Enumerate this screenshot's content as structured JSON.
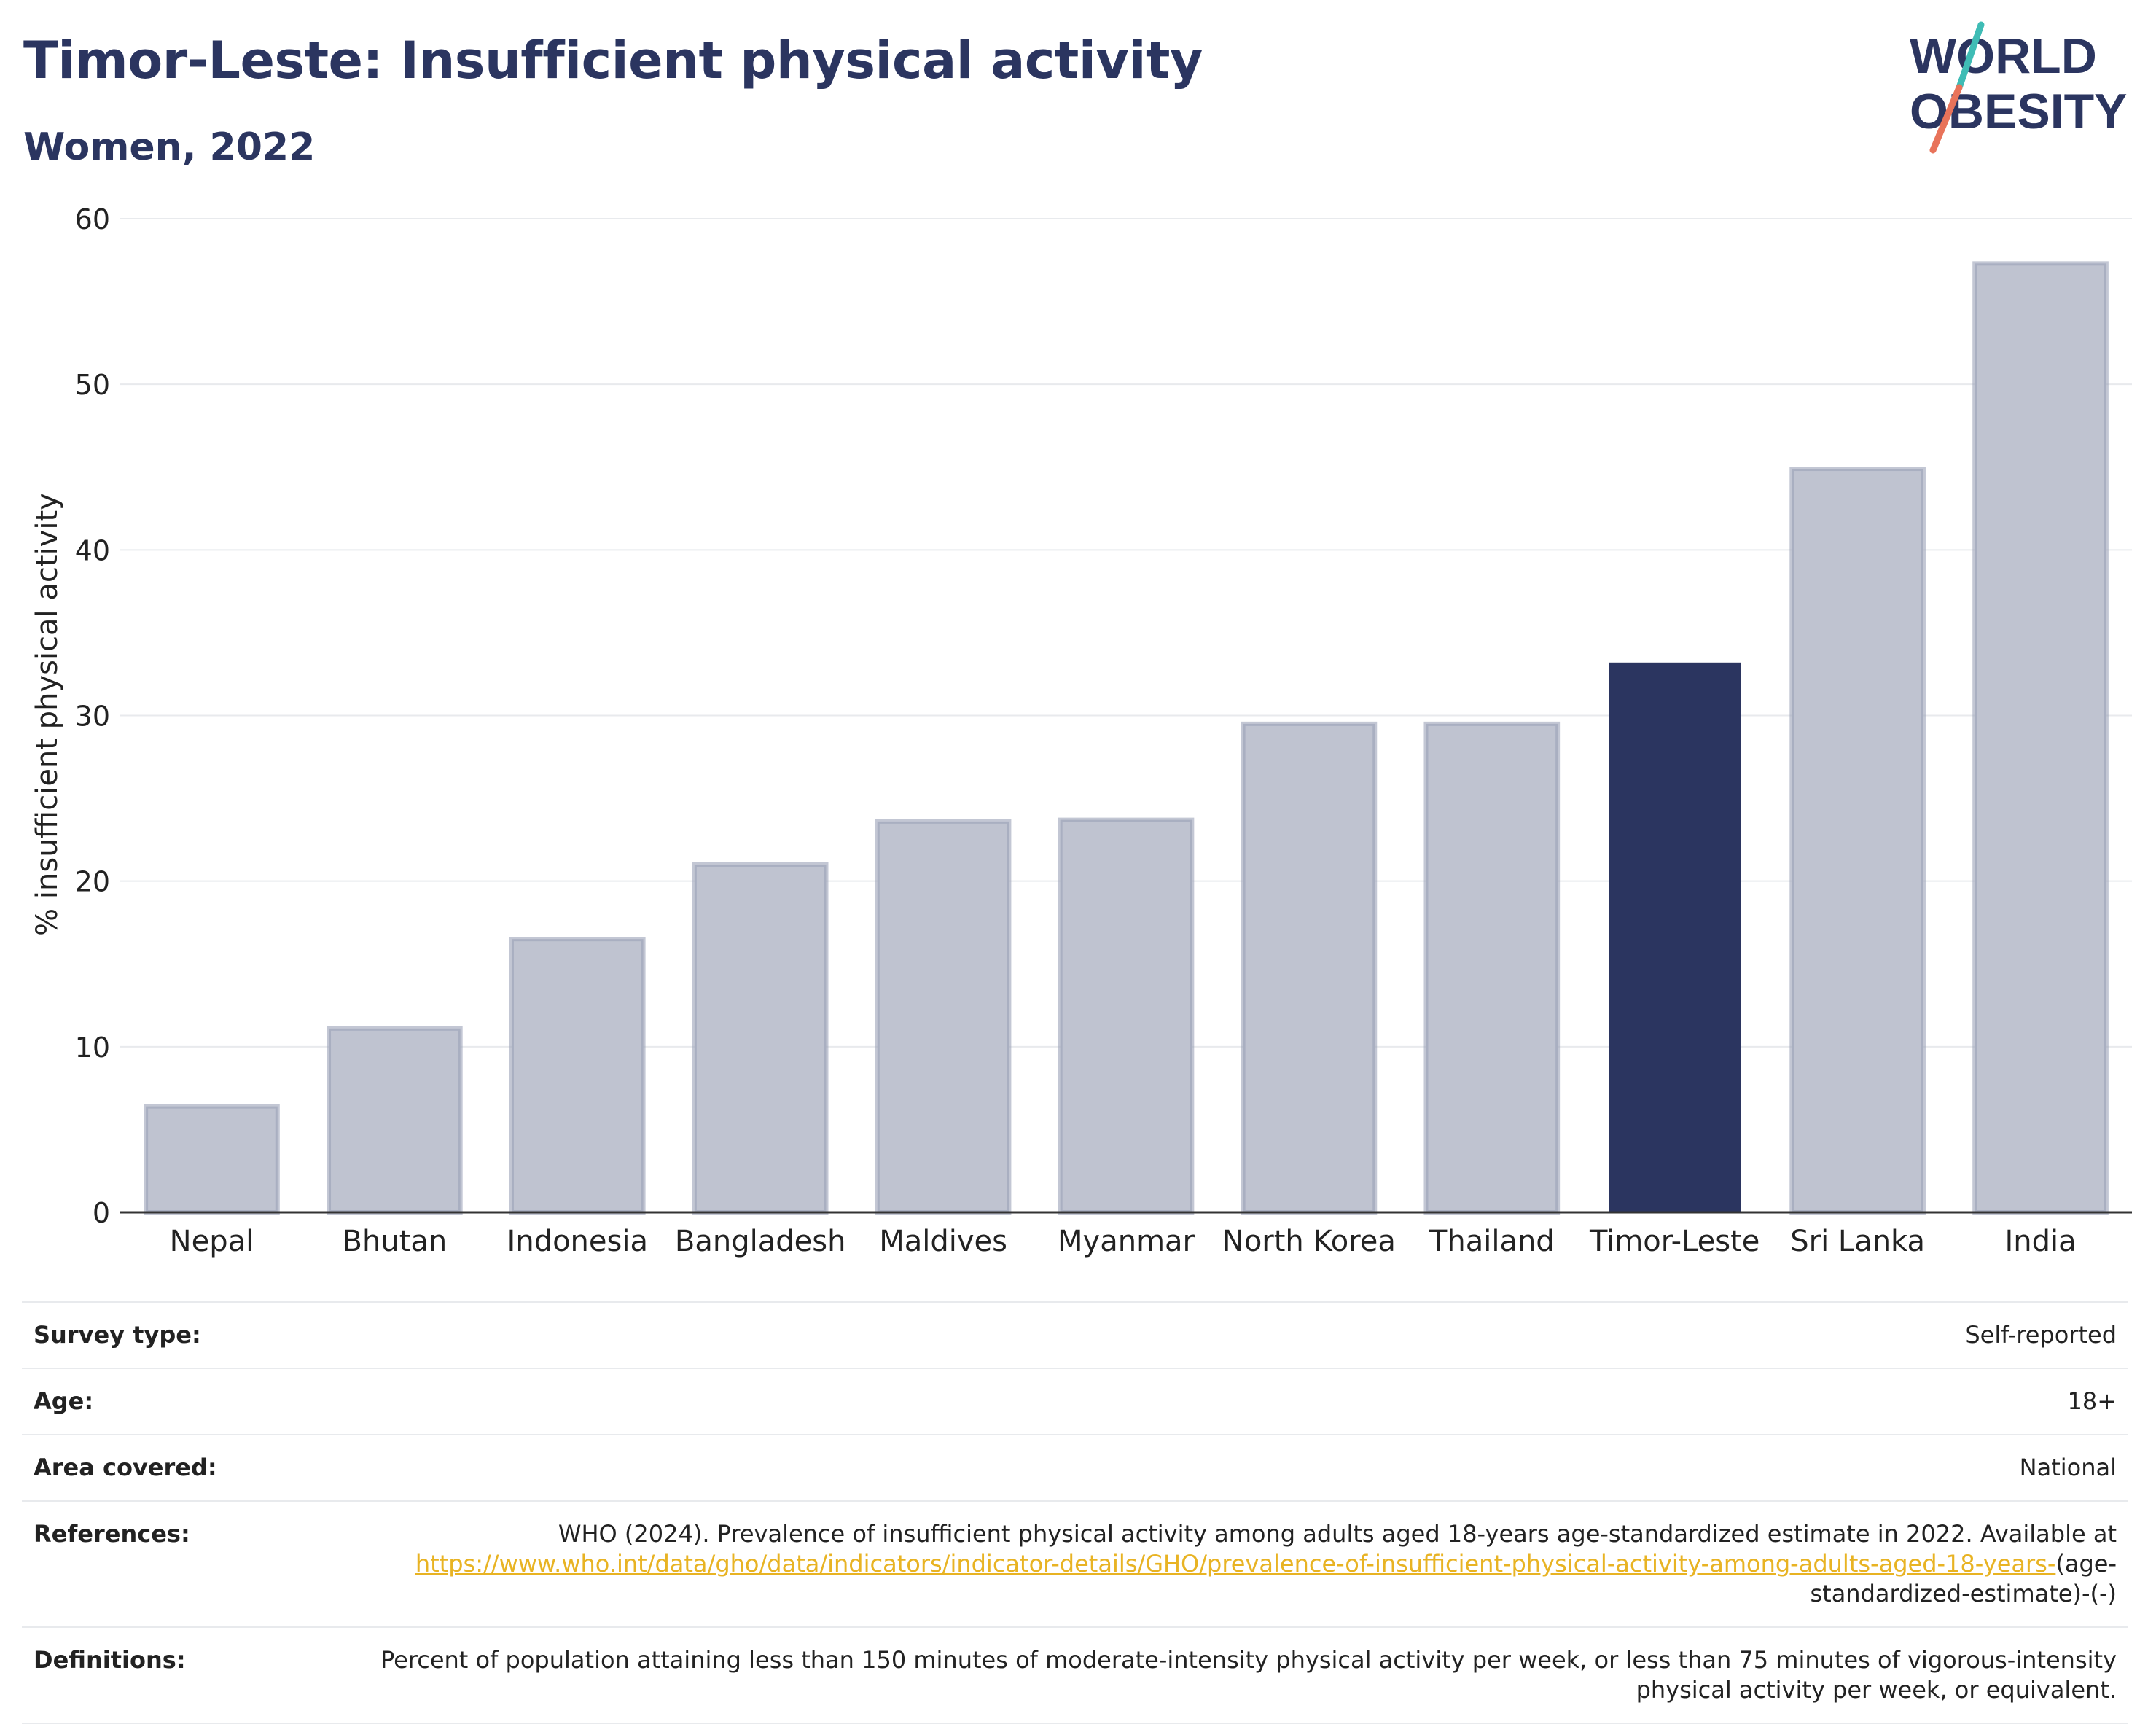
{
  "header": {
    "title": "Timor-Leste: Insufficient physical activity",
    "subtitle": "Women, 2022"
  },
  "logo": {
    "line1": "WORLD",
    "line2": "OBESITY",
    "colors": {
      "text": "#2b3560",
      "slash_teal": "#3fbcb5",
      "slash_coral": "#e8735a"
    }
  },
  "chart_data": {
    "type": "bar",
    "categories": [
      "Nepal",
      "Bhutan",
      "Indonesia",
      "Bangladesh",
      "Maldives",
      "Myanmar",
      "North Korea",
      "Thailand",
      "Timor-Leste",
      "Sri Lanka",
      "India"
    ],
    "values": [
      6.4,
      11.1,
      16.5,
      21.0,
      23.6,
      23.7,
      29.5,
      29.5,
      33.2,
      44.9,
      57.3
    ],
    "highlight": "Timor-Leste",
    "ylabel": "% insufficient physical activity",
    "xlabel": "",
    "ylim": [
      0,
      60
    ],
    "yticks": [
      0,
      10,
      20,
      30,
      40,
      50,
      60
    ],
    "grid": true,
    "legend": "none",
    "colors": {
      "bar": "#bfc3d0",
      "bar_outline": "#9ba1b8",
      "highlight": "#2b3560",
      "grid": "#e8eaed",
      "axis": "#333333"
    }
  },
  "details": {
    "survey_type": {
      "label": "Survey type:",
      "value": "Self-reported"
    },
    "age": {
      "label": "Age:",
      "value": "18+"
    },
    "area": {
      "label": "Area covered:",
      "value": "National"
    },
    "references": {
      "label": "References:",
      "text": "WHO (2024). Prevalence of insufficient physical activity among adults aged 18-years age-standardized estimate in 2022. Available at",
      "link": "https://www.who.int/data/gho/data/indicators/indicator-details/GHO/prevalence-of-insufficient-physical-activity-among-adults-aged-18-years-",
      "suffix": "(age-standardized-estimate)-(-)"
    },
    "definitions": {
      "label": "Definitions:",
      "value": "Percent of population attaining less than 150 minutes of moderate-intensity physical activity per week, or less than 75 minutes of vigorous-intensity physical activity per week, or equivalent."
    }
  }
}
